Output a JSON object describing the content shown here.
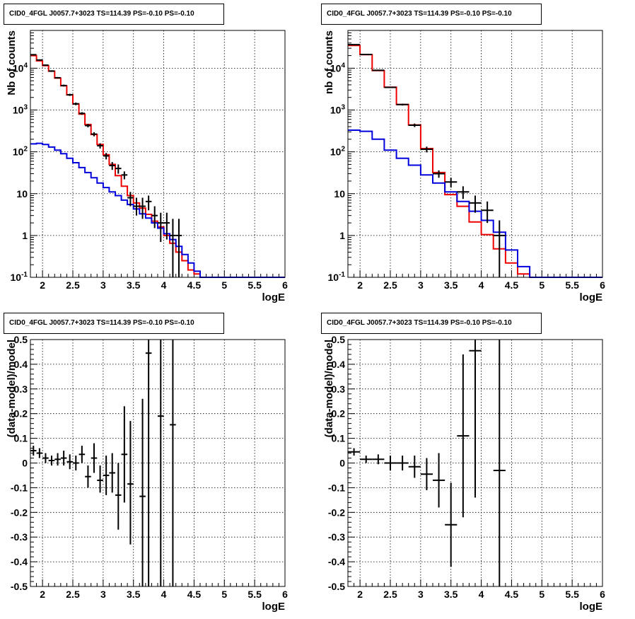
{
  "colors": {
    "data": "#000000",
    "total_model": "#ee0000",
    "component": "#0000dd"
  },
  "chart_data": [
    {
      "type": "line",
      "title": "CID0_4FGL J0057.7+3023 TS=114.39 PS=-0.10 PS=-0.10",
      "xlabel": "logE",
      "ylabel": "Nb of counts",
      "log_y": true,
      "xlim": [
        1.8,
        6.0
      ],
      "ylim": [
        0.1,
        80000
      ],
      "grid": true,
      "x_ticks": [
        "2",
        "2.5",
        "3",
        "3.5",
        "4",
        "4.5",
        "5",
        "5.5",
        "6"
      ],
      "y_ticks": [
        "10^-1",
        "1",
        "10",
        "10^2",
        "10^3",
        "10^4"
      ],
      "bin_edges": [
        1.8,
        1.9,
        2.0,
        2.1,
        2.2,
        2.3,
        2.4,
        2.5,
        2.6,
        2.7,
        2.8,
        2.9,
        3.0,
        3.1,
        3.2,
        3.3,
        3.4,
        3.5,
        3.6,
        3.7,
        3.8,
        3.9,
        4.0,
        4.1,
        4.2,
        4.3,
        4.4,
        4.5,
        4.6,
        4.7,
        4.8,
        4.9,
        5.0,
        5.1,
        5.2,
        5.3,
        5.4,
        5.5,
        5.6,
        5.7,
        5.8,
        5.9,
        6.0
      ],
      "series": [
        {
          "role": "total_model",
          "style": "step",
          "values": [
            20000,
            15000,
            11500,
            8500,
            5800,
            3800,
            2300,
            1400,
            800,
            450,
            260,
            150,
            85,
            50,
            27,
            15,
            9,
            6,
            4.5,
            3.2,
            2.2,
            1.6,
            1.0,
            0.65,
            0.4,
            0.25,
            0.15,
            0.12,
            0.1,
            0.1,
            0.1,
            0.1,
            0.1,
            0.1,
            0.1,
            0.1,
            0.1,
            0.1,
            0.1,
            0.1,
            0.1,
            0.1
          ]
        },
        {
          "role": "component",
          "style": "step",
          "values": [
            155,
            160,
            150,
            130,
            110,
            90,
            70,
            55,
            42,
            32,
            24,
            18,
            14,
            11,
            9,
            7,
            5.5,
            4.3,
            3.3,
            2.6,
            2.0,
            1.5,
            1.1,
            0.8,
            0.55,
            0.35,
            0.22,
            0.14,
            0.1,
            0.1,
            0.1,
            0.1,
            0.1,
            0.1,
            0.1,
            0.1,
            0.1,
            0.1,
            0.1,
            0.1,
            0.1,
            0.1
          ]
        },
        {
          "role": "data",
          "style": "errorbar",
          "points": [
            {
              "x": 1.85,
              "y": 21000,
              "lo": 20400,
              "hi": 21600
            },
            {
              "x": 1.95,
              "y": 15700,
              "lo": 15200,
              "hi": 16200
            },
            {
              "x": 2.05,
              "y": 11800,
              "lo": 11400,
              "hi": 12200
            },
            {
              "x": 2.15,
              "y": 8550,
              "lo": 8200,
              "hi": 8900
            },
            {
              "x": 2.25,
              "y": 5900,
              "lo": 5650,
              "hi": 6150
            },
            {
              "x": 2.35,
              "y": 3850,
              "lo": 3650,
              "hi": 4050
            },
            {
              "x": 2.45,
              "y": 2310,
              "lo": 2170,
              "hi": 2450
            },
            {
              "x": 2.55,
              "y": 1405,
              "lo": 1300,
              "hi": 1510
            },
            {
              "x": 2.65,
              "y": 830,
              "lo": 770,
              "hi": 890
            },
            {
              "x": 2.75,
              "y": 425,
              "lo": 385,
              "hi": 465
            },
            {
              "x": 2.85,
              "y": 265,
              "lo": 235,
              "hi": 295
            },
            {
              "x": 2.95,
              "y": 140,
              "lo": 120,
              "hi": 160
            },
            {
              "x": 3.05,
              "y": 80,
              "lo": 66,
              "hi": 94
            },
            {
              "x": 3.15,
              "y": 47,
              "lo": 37,
              "hi": 57
            },
            {
              "x": 3.25,
              "y": 40,
              "lo": 30,
              "hi": 50
            },
            {
              "x": 3.35,
              "y": 28,
              "lo": 22,
              "hi": 34
            },
            {
              "x": 3.45,
              "y": 8,
              "lo": 5,
              "hi": 11
            },
            {
              "x": 3.55,
              "y": 5,
              "lo": 3,
              "hi": 8
            },
            {
              "x": 3.65,
              "y": 5,
              "lo": 2.5,
              "hi": 8
            },
            {
              "x": 3.75,
              "y": 6.5,
              "lo": 4,
              "hi": 9
            },
            {
              "x": 3.85,
              "y": 3,
              "lo": 1.5,
              "hi": 5
            },
            {
              "x": 3.95,
              "y": 2,
              "lo": 0.7,
              "hi": 3.5
            },
            {
              "x": 4.05,
              "y": 2,
              "lo": 0.8,
              "hi": 3.5
            },
            {
              "x": 4.15,
              "y": 1,
              "lo": 0.1,
              "hi": 2.5
            },
            {
              "x": 4.25,
              "y": 1,
              "lo": 0.1,
              "hi": 2.5
            }
          ]
        }
      ]
    },
    {
      "type": "line",
      "title": "CID0_4FGL J0057.7+3023 TS=114.39 PS=-0.10 PS=-0.10",
      "xlabel": "logE",
      "ylabel": "nb of counts",
      "log_y": true,
      "xlim": [
        1.8,
        6.0
      ],
      "ylim": [
        0.1,
        80000
      ],
      "grid": true,
      "x_ticks": [
        "2",
        "2.5",
        "3",
        "3.5",
        "4",
        "4.5",
        "5",
        "5.5",
        "6"
      ],
      "y_ticks": [
        "10^-1",
        "1",
        "10",
        "10^2",
        "10^3",
        "10^4"
      ],
      "bin_edges": [
        1.8,
        2.0,
        2.2,
        2.4,
        2.6,
        2.8,
        3.0,
        3.2,
        3.4,
        3.6,
        3.8,
        4.0,
        4.2,
        4.4,
        4.6,
        4.8,
        5.0,
        5.2,
        5.4,
        5.6,
        5.8,
        6.0
      ],
      "series": [
        {
          "role": "total_model",
          "style": "step",
          "values": [
            35000,
            21000,
            8800,
            3500,
            1350,
            440,
            120,
            32,
            9.5,
            5.0,
            2.1,
            1.05,
            0.48,
            0.22,
            0.12,
            0.1,
            0.1,
            0.1,
            0.1,
            0.1,
            0.1
          ]
        },
        {
          "role": "component",
          "style": "step",
          "values": [
            330,
            310,
            200,
            110,
            70,
            48,
            28,
            18,
            11,
            6.5,
            3.8,
            2.3,
            1.2,
            0.45,
            0.18,
            0.1,
            0.1,
            0.1,
            0.1,
            0.1,
            0.1
          ]
        },
        {
          "role": "data",
          "style": "errorbar",
          "points": [
            {
              "x": 1.9,
              "y": 36500,
              "lo": 36100,
              "hi": 36900
            },
            {
              "x": 2.1,
              "y": 21300,
              "lo": 21000,
              "hi": 21600
            },
            {
              "x": 2.3,
              "y": 8900,
              "lo": 8700,
              "hi": 9100
            },
            {
              "x": 2.5,
              "y": 3480,
              "lo": 3360,
              "hi": 3600
            },
            {
              "x": 2.7,
              "y": 1350,
              "lo": 1280,
              "hi": 1420
            },
            {
              "x": 2.9,
              "y": 433,
              "lo": 392,
              "hi": 474
            },
            {
              "x": 3.1,
              "y": 115,
              "lo": 97,
              "hi": 133
            },
            {
              "x": 3.3,
              "y": 30,
              "lo": 24,
              "hi": 36
            },
            {
              "x": 3.5,
              "y": 19,
              "lo": 14,
              "hi": 24
            },
            {
              "x": 3.7,
              "y": 11,
              "lo": 7.5,
              "hi": 15
            },
            {
              "x": 3.9,
              "y": 6,
              "lo": 3.5,
              "hi": 9
            },
            {
              "x": 4.1,
              "y": 4,
              "lo": 2,
              "hi": 6.5
            },
            {
              "x": 4.3,
              "y": 1,
              "lo": 0.1,
              "hi": 2.3
            }
          ]
        }
      ]
    },
    {
      "type": "scatter",
      "title": "CID0_4FGL J0057.7+3023 TS=114.39 PS=-0.10 PS=-0.10",
      "xlabel": "logE",
      "ylabel": "(data-model)/model",
      "xlim": [
        1.8,
        6.0
      ],
      "ylim": [
        -0.5,
        0.5
      ],
      "grid": true,
      "x_ticks": [
        "2",
        "2.5",
        "3",
        "3.5",
        "4",
        "4.5",
        "5",
        "5.5",
        "6"
      ],
      "y_ticks": [
        "-0.5",
        "-0.4",
        "-0.3",
        "-0.2",
        "-0.1",
        "0",
        "0.1",
        "0.2",
        "0.3",
        "0.4",
        "0.5"
      ],
      "series": [
        {
          "role": "data",
          "style": "errorbar",
          "half_width": 0.05,
          "points": [
            {
              "x": 1.85,
              "y": 0.05,
              "lo": 0.03,
              "hi": 0.07
            },
            {
              "x": 1.95,
              "y": 0.04,
              "lo": 0.02,
              "hi": 0.06
            },
            {
              "x": 2.05,
              "y": 0.02,
              "lo": 0.0,
              "hi": 0.04
            },
            {
              "x": 2.15,
              "y": 0.01,
              "lo": -0.01,
              "hi": 0.03
            },
            {
              "x": 2.25,
              "y": 0.015,
              "lo": -0.01,
              "hi": 0.04
            },
            {
              "x": 2.35,
              "y": 0.02,
              "lo": -0.01,
              "hi": 0.05
            },
            {
              "x": 2.45,
              "y": 0.005,
              "lo": -0.025,
              "hi": 0.035
            },
            {
              "x": 2.55,
              "y": 0.0,
              "lo": -0.03,
              "hi": 0.03
            },
            {
              "x": 2.65,
              "y": 0.035,
              "lo": 0.0,
              "hi": 0.07
            },
            {
              "x": 2.75,
              "y": -0.055,
              "lo": -0.1,
              "hi": -0.01
            },
            {
              "x": 2.85,
              "y": 0.02,
              "lo": -0.04,
              "hi": 0.08
            },
            {
              "x": 2.95,
              "y": -0.07,
              "lo": -0.12,
              "hi": -0.01
            },
            {
              "x": 3.05,
              "y": -0.05,
              "lo": -0.13,
              "hi": 0.03
            },
            {
              "x": 3.15,
              "y": -0.04,
              "lo": -0.12,
              "hi": 0.04
            },
            {
              "x": 3.25,
              "y": -0.13,
              "lo": -0.27,
              "hi": 0.0
            },
            {
              "x": 3.35,
              "y": 0.035,
              "lo": -0.16,
              "hi": 0.23
            },
            {
              "x": 3.45,
              "y": -0.085,
              "lo": -0.33,
              "hi": 0.17
            },
            {
              "x": 3.65,
              "y": -0.135,
              "lo": -0.5,
              "hi": 0.26
            },
            {
              "x": 3.75,
              "y": 0.445,
              "lo": -0.5,
              "hi": 0.5
            },
            {
              "x": 3.95,
              "y": 0.19,
              "lo": -0.5,
              "hi": 0.5
            },
            {
              "x": 4.15,
              "y": 0.155,
              "lo": -0.5,
              "hi": 0.5
            }
          ]
        }
      ]
    },
    {
      "type": "scatter",
      "title": "CID0_4FGL J0057.7+3023 TS=114.39 PS=-0.10 PS=-0.10",
      "xlabel": "logE",
      "ylabel": "(data-model)/model",
      "xlim": [
        1.8,
        6.0
      ],
      "ylim": [
        -0.5,
        0.5
      ],
      "grid": true,
      "x_ticks": [
        "2",
        "2.5",
        "3",
        "3.5",
        "4",
        "4.5",
        "5",
        "5.5",
        "6"
      ],
      "y_ticks": [
        "-0.5",
        "-0.4",
        "-0.3",
        "-0.2",
        "-0.1",
        "0",
        "0.1",
        "0.2",
        "0.3",
        "0.4",
        "0.5"
      ],
      "series": [
        {
          "role": "data",
          "style": "errorbar",
          "half_width": 0.1,
          "points": [
            {
              "x": 1.9,
              "y": 0.045,
              "lo": 0.03,
              "hi": 0.06
            },
            {
              "x": 2.1,
              "y": 0.015,
              "lo": 0.0,
              "hi": 0.03
            },
            {
              "x": 2.3,
              "y": 0.015,
              "lo": -0.005,
              "hi": 0.035
            },
            {
              "x": 2.5,
              "y": 0.0,
              "lo": -0.03,
              "hi": 0.03
            },
            {
              "x": 2.7,
              "y": 0.0,
              "lo": -0.03,
              "hi": 0.03
            },
            {
              "x": 2.9,
              "y": -0.015,
              "lo": -0.06,
              "hi": 0.03
            },
            {
              "x": 3.1,
              "y": -0.045,
              "lo": -0.11,
              "hi": 0.02
            },
            {
              "x": 3.3,
              "y": -0.07,
              "lo": -0.18,
              "hi": 0.04
            },
            {
              "x": 3.5,
              "y": -0.25,
              "lo": -0.42,
              "hi": -0.08
            },
            {
              "x": 3.7,
              "y": 0.11,
              "lo": -0.22,
              "hi": 0.44
            },
            {
              "x": 3.9,
              "y": 0.455,
              "lo": -0.14,
              "hi": 0.5
            },
            {
              "x": 4.3,
              "y": -0.03,
              "lo": -0.5,
              "hi": 0.5
            }
          ]
        }
      ]
    }
  ]
}
